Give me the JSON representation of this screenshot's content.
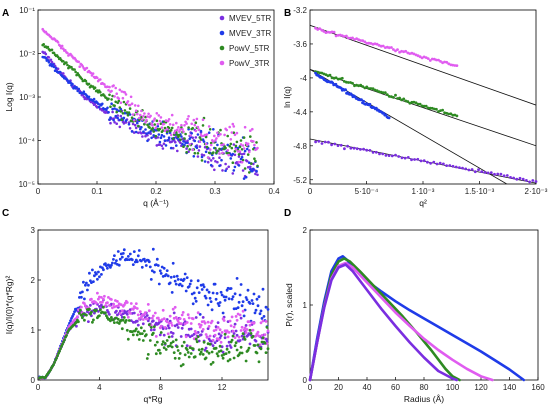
{
  "colors": {
    "MVEV_5TR": "#7a2ee0",
    "MVEV_3TR": "#1f3be8",
    "PowV_5TR": "#2e8a22",
    "PowV_3TR": "#e05cf0",
    "fit": "#111111"
  },
  "chart_data": [
    {
      "panel": "A",
      "type": "scatter",
      "xlabel": "q (Å⁻¹)",
      "ylabel": "Log I(q)",
      "yscale": "log",
      "xlim": [
        0,
        0.4
      ],
      "ylim": [
        1e-05,
        0.1
      ],
      "xticks": [
        "0",
        "0.1",
        "0.2",
        "0.3",
        "0.4"
      ],
      "yticks": [
        "10⁻⁵",
        "10⁻⁴",
        "10⁻³",
        "10⁻²",
        "10⁻¹"
      ],
      "legend_position": "top-right",
      "series": [
        {
          "name": "MVEV_5TR",
          "x": [
            0.01,
            0.02,
            0.04,
            0.06,
            0.08,
            0.1,
            0.13,
            0.16,
            0.2,
            0.25,
            0.3,
            0.35,
            0.37
          ],
          "y": [
            0.011,
            0.007,
            0.0035,
            0.0018,
            0.001,
            0.0006,
            0.00035,
            0.00022,
            0.00012,
            8e-05,
            5e-05,
            3e-05,
            2.5e-05
          ]
        },
        {
          "name": "MVEV_3TR",
          "x": [
            0.01,
            0.02,
            0.04,
            0.06,
            0.08,
            0.1,
            0.13,
            0.16,
            0.2,
            0.25,
            0.3,
            0.35,
            0.37
          ],
          "y": [
            0.0085,
            0.006,
            0.0032,
            0.0018,
            0.0011,
            0.0007,
            0.0004,
            0.00025,
            0.00015,
            0.0001,
            6e-05,
            4e-05,
            3e-05
          ]
        },
        {
          "name": "PowV_5TR",
          "x": [
            0.01,
            0.02,
            0.04,
            0.06,
            0.08,
            0.1,
            0.13,
            0.16,
            0.2,
            0.25,
            0.3,
            0.35,
            0.37
          ],
          "y": [
            0.016,
            0.012,
            0.007,
            0.004,
            0.0023,
            0.0014,
            0.0007,
            0.0004,
            0.0002,
            0.00012,
            8e-05,
            6e-05,
            5e-05
          ]
        },
        {
          "name": "PowV_3TR",
          "x": [
            0.01,
            0.02,
            0.04,
            0.06,
            0.08,
            0.1,
            0.13,
            0.16,
            0.2,
            0.25,
            0.3,
            0.35,
            0.37
          ],
          "y": [
            0.035,
            0.025,
            0.014,
            0.008,
            0.0045,
            0.0026,
            0.0012,
            0.0006,
            0.00028,
            0.00016,
            0.00011,
            8e-05,
            7e-05
          ]
        }
      ]
    },
    {
      "panel": "B",
      "type": "scatter",
      "xlabel": "q²",
      "ylabel": "ln I(q)",
      "xlim": [
        0,
        0.002
      ],
      "ylim": [
        -5.25,
        -3.2
      ],
      "xticks": [
        "0",
        "5·10⁻⁴",
        "1·10⁻³",
        "1.5·10⁻³",
        "2·10⁻³"
      ],
      "yticks": [
        "-3.2",
        "-3.6",
        "-4",
        "-4.4",
        "-4.8",
        "-5.2"
      ],
      "series": [
        {
          "name": "PowV_3TR",
          "x": [
            5e-05,
            0.0013
          ],
          "y": [
            -3.42,
            -3.86
          ]
        },
        {
          "name": "PowV_5TR",
          "x": [
            5e-05,
            0.0013
          ],
          "y": [
            -3.93,
            -4.45
          ]
        },
        {
          "name": "MVEV_3TR",
          "x": [
            5e-05,
            0.0007
          ],
          "y": [
            -3.95,
            -4.46
          ]
        },
        {
          "name": "MVEV_5TR",
          "x": [
            5e-05,
            0.002
          ],
          "y": [
            -4.75,
            -5.22
          ]
        }
      ],
      "fits": [
        {
          "x": [
            0,
            0.002
          ],
          "y": [
            -3.38,
            -4.32
          ]
        },
        {
          "x": [
            0,
            0.002
          ],
          "y": [
            -3.9,
            -4.8
          ]
        },
        {
          "x": [
            0,
            0.002
          ],
          "y": [
            -3.9,
            -5.45
          ]
        },
        {
          "x": [
            0,
            0.002
          ],
          "y": [
            -4.72,
            -5.24
          ]
        }
      ]
    },
    {
      "panel": "C",
      "type": "scatter",
      "xlabel": "q*Rg",
      "ylabel": "I(q)/I(0)*(q*Rg)²",
      "xlim": [
        0,
        15
      ],
      "ylim": [
        0,
        3
      ],
      "xticks": [
        "0",
        "4",
        "8",
        "12"
      ],
      "yticks": [
        "0",
        "1",
        "2",
        "3"
      ],
      "series": [
        {
          "name": "MVEV_3TR",
          "x": [
            0.5,
            1,
            2,
            3,
            4,
            5,
            6,
            7,
            8,
            9,
            10,
            11,
            12,
            13,
            14,
            15
          ],
          "y": [
            0.05,
            0.3,
            1.1,
            1.8,
            2.2,
            2.4,
            2.45,
            2.35,
            2.2,
            2.0,
            1.85,
            1.7,
            1.65,
            1.6,
            1.5,
            1.4
          ]
        },
        {
          "name": "MVEV_5TR",
          "x": [
            0.5,
            1,
            2,
            3,
            4,
            5,
            6,
            7,
            8,
            9,
            10,
            11,
            12,
            13,
            14,
            15
          ],
          "y": [
            0.05,
            0.3,
            1.0,
            1.35,
            1.45,
            1.4,
            1.3,
            1.2,
            1.1,
            1.0,
            0.95,
            0.9,
            0.9,
            0.9,
            0.85,
            0.8
          ]
        },
        {
          "name": "PowV_3TR",
          "x": [
            0.5,
            1,
            2,
            3,
            4,
            5,
            6,
            7,
            8,
            9,
            10,
            11,
            12,
            13,
            14,
            15
          ],
          "y": [
            0.05,
            0.3,
            1.05,
            1.45,
            1.6,
            1.55,
            1.4,
            1.3,
            1.2,
            1.15,
            1.1,
            1.1,
            1.05,
            1.05,
            1.0,
            1.0
          ]
        },
        {
          "name": "PowV_5TR",
          "x": [
            0.5,
            1,
            2,
            3,
            4,
            5,
            6,
            7,
            8,
            9,
            10,
            11,
            12,
            13,
            14,
            15
          ],
          "y": [
            0.05,
            0.3,
            1.0,
            1.3,
            1.35,
            1.2,
            1.0,
            0.85,
            0.7,
            0.6,
            0.55,
            0.55,
            0.6,
            0.65,
            0.7,
            0.75
          ]
        }
      ]
    },
    {
      "panel": "D",
      "type": "line",
      "xlabel": "Radius (Å)",
      "ylabel": "P(r), scaled",
      "xlim": [
        0,
        160
      ],
      "ylim": [
        0,
        2
      ],
      "xticks": [
        "0",
        "20",
        "40",
        "60",
        "80",
        "100",
        "120",
        "140",
        "160"
      ],
      "yticks": [
        "0",
        "1",
        "2"
      ],
      "series": [
        {
          "name": "MVEV_3TR",
          "x": [
            0,
            5,
            10,
            15,
            20,
            23,
            26,
            30,
            40,
            50,
            60,
            70,
            80,
            90,
            100,
            110,
            120,
            130,
            140,
            150
          ],
          "y": [
            0,
            0.55,
            1.05,
            1.45,
            1.62,
            1.65,
            1.6,
            1.5,
            1.32,
            1.18,
            1.05,
            0.93,
            0.82,
            0.71,
            0.6,
            0.49,
            0.38,
            0.26,
            0.14,
            0
          ]
        },
        {
          "name": "PowV_5TR",
          "x": [
            0,
            5,
            10,
            15,
            20,
            24,
            28,
            35,
            45,
            55,
            65,
            75,
            85,
            95,
            100,
            105
          ],
          "y": [
            0,
            0.5,
            1.0,
            1.4,
            1.58,
            1.62,
            1.58,
            1.45,
            1.25,
            1.05,
            0.85,
            0.63,
            0.4,
            0.15,
            0.05,
            0
          ]
        },
        {
          "name": "PowV_3TR",
          "x": [
            0,
            5,
            10,
            15,
            20,
            25,
            30,
            40,
            50,
            60,
            70,
            80,
            90,
            100,
            110,
            120,
            128
          ],
          "y": [
            0,
            0.5,
            0.98,
            1.35,
            1.52,
            1.56,
            1.5,
            1.3,
            1.1,
            0.9,
            0.72,
            0.55,
            0.4,
            0.27,
            0.15,
            0.05,
            0
          ]
        },
        {
          "name": "MVEV_5TR",
          "x": [
            0,
            5,
            10,
            15,
            20,
            25,
            30,
            40,
            50,
            60,
            70,
            80,
            90,
            100,
            103
          ],
          "y": [
            0,
            0.5,
            0.97,
            1.33,
            1.5,
            1.54,
            1.45,
            1.2,
            0.95,
            0.72,
            0.5,
            0.3,
            0.12,
            0.02,
            0
          ]
        }
      ]
    }
  ]
}
